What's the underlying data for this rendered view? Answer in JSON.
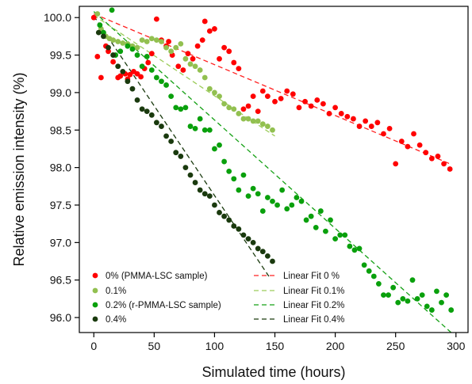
{
  "chart_data": {
    "type": "scatter",
    "title": "",
    "xlabel": "Simulated time (hours)",
    "ylabel": "Relative emission intensity (%)",
    "xlim": [
      -12,
      310
    ],
    "ylim": [
      95.8,
      100.15
    ],
    "xticks": [
      0,
      50,
      100,
      150,
      200,
      250,
      300
    ],
    "yticks": [
      96.0,
      96.5,
      97.0,
      97.5,
      98.0,
      98.5,
      99.0,
      99.5,
      100.0
    ],
    "grid": false,
    "legend_position": "bottom-left",
    "legend_columns": 2,
    "series": [
      {
        "name": "0% (PMMA-LSC sample)",
        "color": "#ff0000",
        "marker": "circle",
        "x": [
          0,
          3,
          6,
          10,
          12,
          16,
          20,
          22,
          26,
          28,
          30,
          33,
          36,
          39,
          42,
          45,
          48,
          52,
          56,
          60,
          62,
          65,
          70,
          74,
          78,
          82,
          86,
          90,
          92,
          96,
          100,
          104,
          108,
          112,
          116,
          120,
          124,
          128,
          132,
          136,
          140,
          144,
          150,
          155,
          160,
          165,
          170,
          175,
          180,
          185,
          190,
          195,
          200,
          205,
          210,
          215,
          220,
          225,
          230,
          235,
          240,
          245,
          250,
          255,
          260,
          265,
          270,
          275,
          280,
          285,
          290,
          295
        ],
        "y": [
          100.0,
          99.48,
          99.2,
          99.62,
          99.55,
          99.41,
          99.2,
          99.22,
          99.25,
          99.18,
          99.24,
          99.28,
          99.25,
          99.21,
          99.32,
          99.4,
          99.52,
          99.98,
          99.7,
          99.62,
          99.68,
          99.5,
          99.35,
          99.3,
          99.52,
          99.45,
          99.62,
          99.7,
          99.95,
          99.82,
          99.85,
          99.45,
          99.6,
          99.55,
          99.4,
          99.32,
          98.78,
          98.82,
          98.95,
          98.75,
          99.02,
          98.95,
          98.88,
          98.92,
          99.02,
          98.98,
          98.8,
          98.88,
          98.82,
          98.9,
          98.85,
          98.72,
          98.8,
          98.72,
          98.68,
          98.65,
          98.55,
          98.62,
          98.55,
          98.6,
          98.45,
          98.52,
          98.05,
          98.35,
          98.28,
          98.45,
          98.3,
          98.2,
          98.12,
          98.15,
          98.05,
          97.98
        ]
      },
      {
        "name": "0.1%",
        "color": "#92c050",
        "marker": "circle",
        "x": [
          3,
          6,
          10,
          13,
          16,
          20,
          24,
          28,
          32,
          36,
          40,
          44,
          48,
          52,
          56,
          60,
          64,
          68,
          72,
          76,
          80,
          84,
          88,
          92,
          96,
          100,
          104,
          108,
          112,
          116,
          120,
          124,
          128,
          132,
          136,
          140,
          144,
          148
        ],
        "y": [
          100.05,
          99.85,
          99.75,
          99.72,
          99.7,
          99.68,
          99.66,
          99.65,
          99.62,
          99.6,
          99.7,
          99.68,
          99.72,
          99.7,
          99.68,
          99.6,
          99.55,
          99.6,
          99.65,
          99.45,
          99.38,
          99.35,
          99.3,
          99.2,
          99.05,
          99.0,
          98.95,
          98.85,
          98.8,
          98.78,
          98.72,
          98.65,
          98.65,
          98.62,
          98.62,
          98.58,
          98.55,
          98.5
        ]
      },
      {
        "name": "0.2% (r-PMMA-LSC sample)",
        "color": "#09a00c",
        "marker": "circle",
        "x": [
          5,
          8,
          15,
          18,
          22,
          28,
          32,
          36,
          40,
          44,
          48,
          52,
          56,
          60,
          64,
          68,
          72,
          76,
          80,
          84,
          88,
          92,
          96,
          100,
          104,
          108,
          112,
          116,
          120,
          124,
          128,
          132,
          136,
          140,
          144,
          148,
          152,
          156,
          160,
          164,
          168,
          172,
          176,
          180,
          184,
          188,
          192,
          196,
          200,
          204,
          208,
          212,
          216,
          220,
          224,
          228,
          232,
          236,
          240,
          244,
          248,
          252,
          256,
          260,
          264,
          268,
          272,
          276,
          280,
          284,
          288,
          292,
          296
        ],
        "y": [
          99.9,
          99.8,
          100.1,
          99.5,
          99.55,
          99.62,
          99.58,
          99.5,
          99.35,
          99.48,
          99.3,
          99.2,
          99.15,
          99.1,
          98.95,
          98.8,
          98.78,
          98.8,
          98.55,
          98.52,
          98.65,
          98.5,
          98.5,
          98.25,
          98.3,
          98.08,
          97.95,
          97.85,
          97.7,
          97.9,
          97.62,
          97.72,
          97.65,
          97.42,
          97.6,
          97.55,
          97.5,
          97.7,
          97.45,
          97.5,
          97.6,
          97.55,
          97.3,
          97.35,
          97.2,
          97.42,
          97.15,
          97.3,
          97.05,
          97.1,
          97.1,
          96.95,
          96.9,
          96.92,
          96.7,
          96.62,
          96.55,
          96.45,
          96.3,
          96.3,
          96.4,
          96.2,
          96.25,
          96.22,
          96.5,
          96.25,
          96.3,
          96.15,
          96.1,
          96.35,
          96.2,
          96.3,
          96.1
        ]
      },
      {
        "name": "0.4%",
        "color": "#1a3a0e",
        "marker": "circle",
        "x": [
          4,
          8,
          12,
          16,
          20,
          24,
          28,
          32,
          36,
          40,
          44,
          48,
          52,
          56,
          60,
          64,
          68,
          72,
          76,
          80,
          84,
          88,
          92,
          96,
          100,
          104,
          108,
          112,
          116,
          120,
          124,
          128,
          132,
          136,
          140,
          144,
          148
        ],
        "y": [
          99.8,
          99.75,
          99.6,
          99.5,
          99.35,
          99.28,
          99.15,
          99.05,
          98.9,
          98.78,
          98.75,
          98.7,
          98.6,
          98.55,
          98.42,
          98.35,
          98.2,
          98.15,
          98.0,
          97.9,
          97.8,
          97.7,
          97.65,
          97.62,
          97.5,
          97.4,
          97.35,
          97.3,
          97.22,
          97.18,
          97.1,
          97.05,
          97.0,
          96.92,
          96.88,
          96.82,
          96.75
        ]
      }
    ],
    "fits": [
      {
        "name": "Linear Fit 0 %",
        "color": "#ff2020",
        "x": [
          0,
          295
        ],
        "y": [
          100.05,
          98.05
        ]
      },
      {
        "name": "Linear Fit 0.1%",
        "color": "#9ccc5a",
        "x": [
          0,
          150
        ],
        "y": [
          100.03,
          98.42
        ]
      },
      {
        "name": "Linear Fit 0.2%",
        "color": "#14a014",
        "x": [
          0,
          296
        ],
        "y": [
          100.08,
          95.8
        ]
      },
      {
        "name": "Linear Fit 0.4%",
        "color": "#1a3a0e",
        "x": [
          0,
          145
        ],
        "y": [
          100.02,
          96.55
        ]
      }
    ]
  }
}
